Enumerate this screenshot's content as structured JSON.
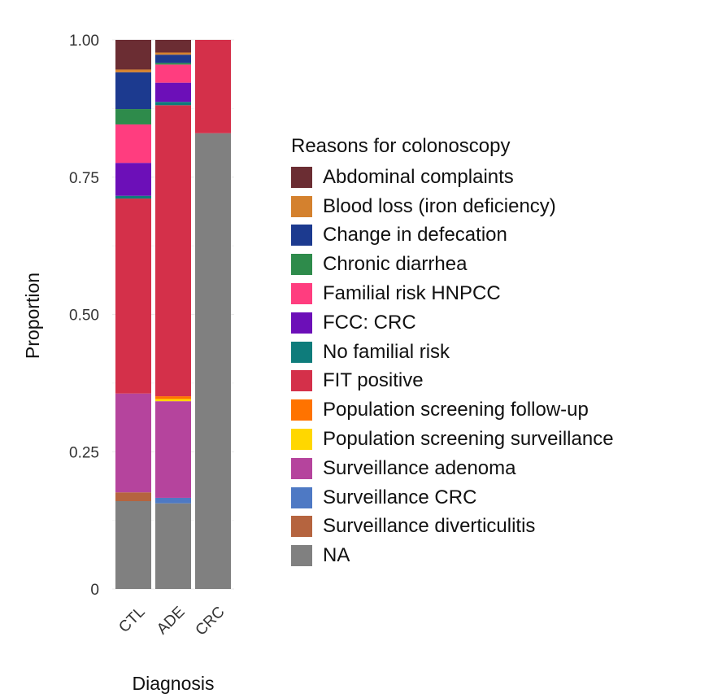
{
  "chart_data": {
    "type": "bar",
    "stacked": true,
    "title": "",
    "xlabel": "Diagnosis",
    "ylabel": "Proportion",
    "ylim": [
      0,
      1
    ],
    "yticks": [
      0,
      0.25,
      0.5,
      0.75,
      1.0
    ],
    "ytick_labels": [
      "0",
      "0.25",
      "0.50",
      "0.75",
      "1.00"
    ],
    "categories": [
      "CTL",
      "ADE",
      "CRC"
    ],
    "legend_title": "Reasons for colonoscopy",
    "legend_position": "right",
    "series": [
      {
        "name": "NA",
        "color": "#808080",
        "values": [
          0.16,
          0.156,
          0.83
        ]
      },
      {
        "name": "Surveillance diverticulitis",
        "color": "#B5643F",
        "values": [
          0.016,
          0.0,
          0.0
        ]
      },
      {
        "name": "Surveillance CRC",
        "color": "#4E79C4",
        "values": [
          0.0,
          0.01,
          0.0
        ]
      },
      {
        "name": "Surveillance adenoma",
        "color": "#B5449D",
        "values": [
          0.18,
          0.176,
          0.0
        ]
      },
      {
        "name": "Population screening surveillance",
        "color": "#FFD700",
        "values": [
          0.0,
          0.004,
          0.0
        ]
      },
      {
        "name": "Population screening follow-up",
        "color": "#FF7300",
        "values": [
          0.0,
          0.005,
          0.0
        ]
      },
      {
        "name": "FIT positive",
        "color": "#D4304A",
        "values": [
          0.355,
          0.53,
          0.17
        ]
      },
      {
        "name": "No familial risk",
        "color": "#0E7C7B",
        "values": [
          0.005,
          0.006,
          0.0
        ]
      },
      {
        "name": "FCC: CRC",
        "color": "#6C0FB8",
        "values": [
          0.06,
          0.035,
          0.0
        ]
      },
      {
        "name": "Familial risk HNPCC",
        "color": "#FF3D7F",
        "values": [
          0.07,
          0.033,
          0.0
        ]
      },
      {
        "name": "Chronic diarrhea",
        "color": "#2E8B4B",
        "values": [
          0.028,
          0.003,
          0.0
        ]
      },
      {
        "name": "Change in defecation",
        "color": "#1C3A8F",
        "values": [
          0.067,
          0.015,
          0.0
        ]
      },
      {
        "name": "Blood loss (iron deficiency)",
        "color": "#D4812E",
        "values": [
          0.005,
          0.004,
          0.0
        ]
      },
      {
        "name": "Abdominal complaints",
        "color": "#6B2D33",
        "values": [
          0.054,
          0.023,
          0.0
        ]
      }
    ],
    "legend_order": [
      "Abdominal complaints",
      "Blood loss (iron deficiency)",
      "Change in defecation",
      "Chronic diarrhea",
      "Familial risk HNPCC",
      "FCC: CRC",
      "No familial risk",
      "FIT positive",
      "Population screening follow-up",
      "Population screening surveillance",
      "Surveillance adenoma",
      "Surveillance CRC",
      "Surveillance diverticulitis",
      "NA"
    ]
  }
}
